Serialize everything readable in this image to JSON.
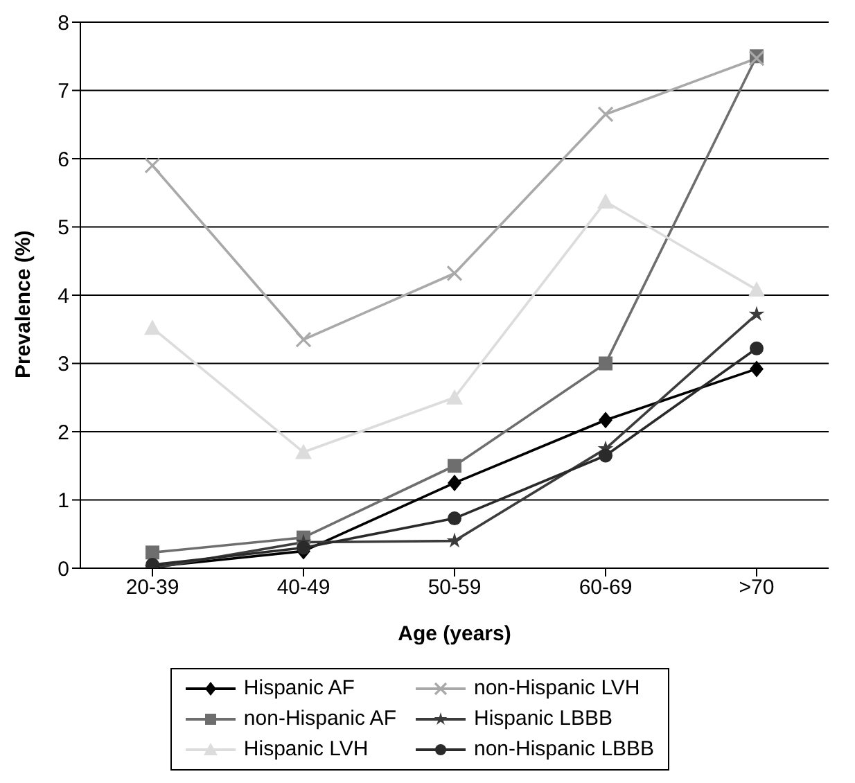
{
  "chart_data": {
    "type": "line",
    "xlabel": "Age (years)",
    "ylabel": "Prevalence (%)",
    "categories": [
      "20-39",
      "40-49",
      "50-59",
      "60-69",
      ">70"
    ],
    "series": [
      {
        "name": "Hispanic AF",
        "color": "#000000",
        "marker": "diamond",
        "values": [
          0.02,
          0.25,
          1.25,
          2.17,
          2.92
        ]
      },
      {
        "name": "non-Hispanic AF",
        "color": "#6e6e6e",
        "marker": "square",
        "values": [
          0.23,
          0.45,
          1.5,
          3.0,
          7.5
        ]
      },
      {
        "name": "Hispanic LVH",
        "color": "#dcdcdc",
        "marker": "triangle",
        "values": [
          3.52,
          1.7,
          2.5,
          5.37,
          4.08
        ]
      },
      {
        "name": "non-Hispanic LVH",
        "color": "#a9a9a9",
        "marker": "cross",
        "values": [
          5.9,
          3.35,
          4.32,
          6.65,
          7.47
        ]
      },
      {
        "name": "Hispanic LBBB",
        "color": "#3c3c3c",
        "marker": "star",
        "values": [
          0.0,
          0.38,
          0.4,
          1.75,
          3.72
        ]
      },
      {
        "name": "non-Hispanic LBBB",
        "color": "#2a2a2a",
        "marker": "circle",
        "values": [
          0.05,
          0.3,
          0.73,
          1.65,
          3.22
        ]
      }
    ],
    "ylim": [
      0,
      8
    ],
    "yticks": [
      0,
      1,
      2,
      3,
      4,
      5,
      6,
      7,
      8
    ],
    "grid": "y",
    "legend": "bottom",
    "line_style": "solid"
  }
}
